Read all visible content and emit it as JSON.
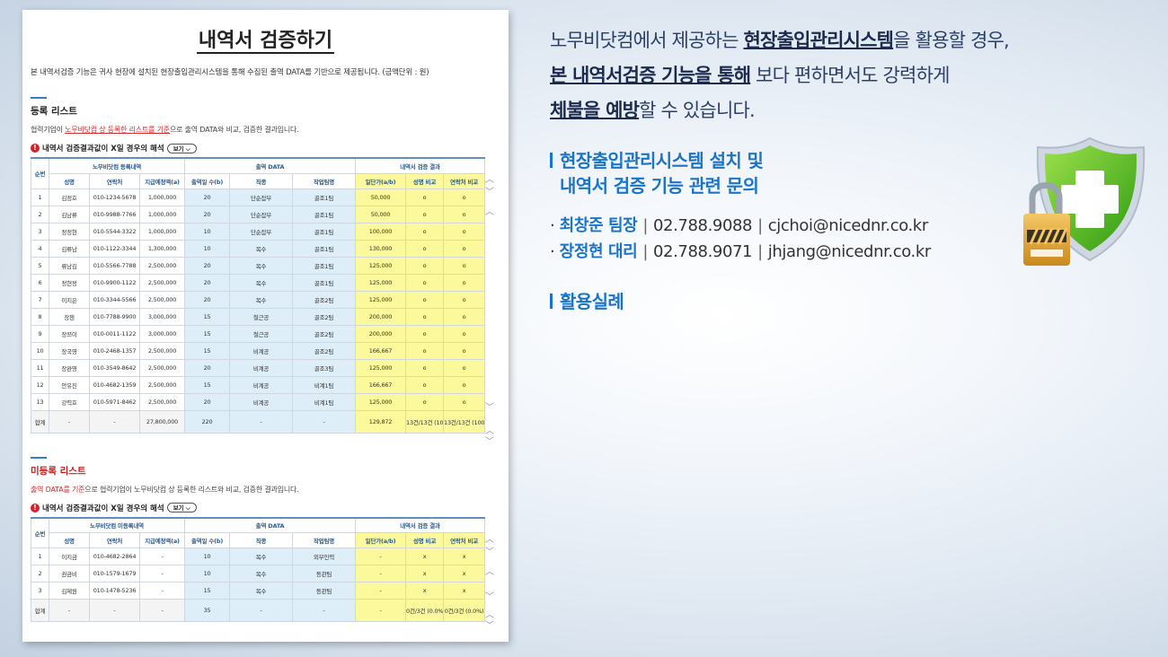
{
  "doc": {
    "title": "내역서 검증하기",
    "desc": "본 내역서검증 기능은 귀사 현장에 설치된 현장출입관리시스템을 통해 수집된 출역 DATA를 기반으로 제공됩니다. (금액단위 : 원)",
    "view_label": "보기",
    "registered": {
      "title": "등록 리스트",
      "note_pre": "협력기업이 ",
      "note_hl": "노무비닷컴 상 등록한 리스트를 기준",
      "note_post": "으로 출역 DATA와 비교, 검증한 결과입니다.",
      "hint": "내역서 검증결과값이 X일 경우의 해석",
      "group_headers": [
        "순번",
        "노무비닷컴 등록내역",
        "출역 DATA",
        "내역서 검증 결과"
      ],
      "col_headers": [
        "성명",
        "연락처",
        "지급예정액(a)",
        "출역일 수(b)",
        "직종",
        "작업팀명",
        "일단가(a/b)",
        "성명 비교",
        "연락처 비교"
      ],
      "rows": [
        [
          "1",
          "김정호",
          "010-1234-5678",
          "1,000,000",
          "20",
          "단순잡부",
          "골조1팀",
          "50,000",
          "o",
          "o"
        ],
        [
          "2",
          "김남류",
          "010-9988-7766",
          "1,000,000",
          "20",
          "단순잡부",
          "골조1팀",
          "50,000",
          "o",
          "o"
        ],
        [
          "3",
          "정정현",
          "010-5544-3322",
          "1,000,000",
          "10",
          "단순잡부",
          "골조1팀",
          "100,000",
          "o",
          "o"
        ],
        [
          "4",
          "김류남",
          "010-1122-3344",
          "1,300,000",
          "10",
          "목수",
          "골조1팀",
          "130,000",
          "o",
          "o"
        ],
        [
          "5",
          "류남김",
          "010-5566-7788",
          "2,500,000",
          "20",
          "목수",
          "골조1팀",
          "125,000",
          "o",
          "o"
        ],
        [
          "6",
          "정현정",
          "010-9900-1122",
          "2,500,000",
          "20",
          "목수",
          "골조1팀",
          "125,000",
          "o",
          "o"
        ],
        [
          "7",
          "이지은",
          "010-3344-5566",
          "2,500,000",
          "20",
          "목수",
          "골조2팀",
          "125,000",
          "o",
          "o"
        ],
        [
          "8",
          "장첸",
          "010-7788-9900",
          "3,000,000",
          "15",
          "철근공",
          "골조2팀",
          "200,000",
          "o",
          "o"
        ],
        [
          "9",
          "장쯔이",
          "010-0011-1122",
          "3,000,000",
          "15",
          "철근공",
          "골조2팀",
          "200,000",
          "o",
          "o"
        ],
        [
          "10",
          "장국영",
          "010-2468-1357",
          "2,500,000",
          "15",
          "비계공",
          "골조2팀",
          "166,667",
          "o",
          "o"
        ],
        [
          "11",
          "장완영",
          "010-3549-8642",
          "2,500,000",
          "20",
          "비계공",
          "골조3팀",
          "125,000",
          "o",
          "o"
        ],
        [
          "12",
          "안유진",
          "010-4682-1359",
          "2,500,000",
          "15",
          "비계공",
          "비계1팀",
          "166,667",
          "o",
          "o"
        ],
        [
          "13",
          "강력호",
          "010-5971-8462",
          "2,500,000",
          "20",
          "비계공",
          "비계1팀",
          "125,000",
          "o",
          "o"
        ]
      ],
      "sum": [
        "합계",
        "-",
        "-",
        "27,800,000",
        "220",
        "-",
        "-",
        "129,872",
        "13건/13건 (100.0%)",
        "13건/13건 (100.0%)"
      ]
    },
    "unregistered": {
      "title": "미등록 리스트",
      "note_hl": "출역 DATA를 기준",
      "note_post": "으로 협력기업이 노무비닷컴 상 등록한 리스트와 비교, 검증한 결과입니다.",
      "hint": "내역서 검증결과값이 X일 경우의 해석",
      "group_headers": [
        "순번",
        "노무비닷컴 미등록내역",
        "출역 DATA",
        "내역서 검증 결과"
      ],
      "col_headers": [
        "성명",
        "연락처",
        "지급예정액(a)",
        "출역일 수(b)",
        "직종",
        "작업팀명",
        "일단가(a/b)",
        "성명 비교",
        "연락처 비교"
      ],
      "rows": [
        [
          "1",
          "이지금",
          "010-4682-2864",
          "-",
          "10",
          "목수",
          "외부인력",
          "-",
          "x",
          "x"
        ],
        [
          "2",
          "권금비",
          "010-1579-1679",
          "-",
          "10",
          "목수",
          "등관팀",
          "-",
          "x",
          "x"
        ],
        [
          "3",
          "김제원",
          "010-1478-5236",
          "-",
          "15",
          "목수",
          "등관팀",
          "-",
          "x",
          "x"
        ]
      ],
      "sum": [
        "합계",
        "-",
        "-",
        "-",
        "35",
        "-",
        "-",
        "-",
        "0건/3건 (0.0%)",
        "0건/3건 (0.0%)"
      ]
    }
  },
  "right": {
    "line1_pre": "노무비닷컴에서 제공하는 ",
    "line1_bold": "현장출입관리시스템",
    "line1_post": "을 활용할 경우,",
    "line2_bold": "본 내역서검증 기능을 통해",
    "line2_post": " 보다 편하면서도 강력하게",
    "line3_bold": "체불을 예방",
    "line3_post": "할 수 있습니다.",
    "inquiry_title_1": "현장출입관리시스템 설치 및",
    "inquiry_title_2": "내역서 검증 기능 관련 문의",
    "contacts": [
      {
        "name": "최창준 팀장",
        "phone": "02.788.9088",
        "email": "cjchoi@nicednr.co.kr"
      },
      {
        "name": "장정현 대리",
        "phone": "02.788.9071",
        "email": "jhjang@nicednr.co.kr"
      }
    ],
    "examples_title": "활용실례"
  },
  "colors": {
    "accent": "#1a74c8",
    "yellow_cell": "#fbf99c",
    "blue_cell": "#ddeef8",
    "alert_red": "#d3202a"
  }
}
